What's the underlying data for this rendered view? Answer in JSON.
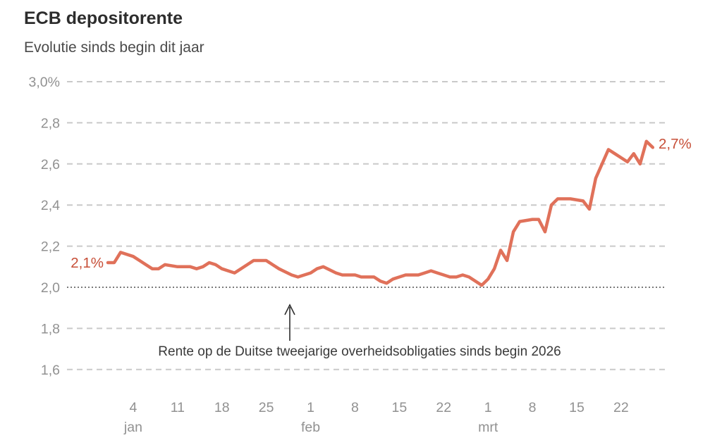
{
  "header": {
    "title": "ECB depositorente",
    "subtitle": "Evolutie sinds begin dit jaar"
  },
  "chart_data": {
    "type": "line",
    "title": "ECB depositorente",
    "subtitle": "Evolutie sinds begin dit jaar",
    "unit": "%",
    "grid": "horizontal-dashed",
    "legend": "none",
    "y_axis": {
      "range": [
        1.6,
        3.0
      ],
      "ticks": [
        {
          "label": "3,0%",
          "value": 3.0,
          "style": "dashed"
        },
        {
          "label": "2,8",
          "value": 2.8,
          "style": "dashed"
        },
        {
          "label": "2,6",
          "value": 2.6,
          "style": "dashed"
        },
        {
          "label": "2,4",
          "value": 2.4,
          "style": "dashed"
        },
        {
          "label": "2,2",
          "value": 2.2,
          "style": "dashed"
        },
        {
          "label": "2,0",
          "value": 2.0,
          "style": "dotted"
        },
        {
          "label": "1,8",
          "value": 1.8,
          "style": "dashed"
        },
        {
          "label": "1,6",
          "value": 1.6,
          "style": "dashed"
        }
      ]
    },
    "x_axis": {
      "ticks": [
        {
          "label": "4",
          "date": "4 jan",
          "month_label": "jan"
        },
        {
          "label": "11",
          "date": "11 jan"
        },
        {
          "label": "18",
          "date": "18 jan"
        },
        {
          "label": "25",
          "date": "25 jan"
        },
        {
          "label": "1",
          "date": "1 feb",
          "month_label": "feb"
        },
        {
          "label": "8",
          "date": "8 feb"
        },
        {
          "label": "15",
          "date": "15 feb"
        },
        {
          "label": "22",
          "date": "22 feb"
        },
        {
          "label": "1",
          "date": "1 mrt",
          "month_label": "mrt"
        },
        {
          "label": "8",
          "date": "8 mrt"
        },
        {
          "label": "15",
          "date": "15 mrt"
        },
        {
          "label": "22",
          "date": "22 mrt"
        }
      ]
    },
    "series": [
      {
        "name": "Rente op de Duitse tweejarige overheidsobligaties",
        "color": "#e0715a",
        "dates": [
          "31 dec",
          "1 jan",
          "2 jan",
          "4 jan",
          "5 jan",
          "6 jan",
          "7 jan",
          "8 jan",
          "9 jan",
          "11 jan",
          "12 jan",
          "13 jan",
          "14 jan",
          "15 jan",
          "16 jan",
          "17 jan",
          "18 jan",
          "20 jan",
          "21 jan",
          "22 jan",
          "23 jan",
          "25 jan",
          "26 jan",
          "27 jan",
          "29 jan",
          "30 jan",
          "1 feb",
          "2 feb",
          "3 feb",
          "5 feb",
          "6 feb",
          "8 feb",
          "9 feb",
          "10 feb",
          "11 feb",
          "12 feb",
          "13 feb",
          "14 feb",
          "15 feb",
          "16 feb",
          "18 feb",
          "19 feb",
          "20 feb",
          "21 feb",
          "22 feb",
          "23 feb",
          "24 feb",
          "25 feb",
          "26 feb",
          "28 feb",
          "1 mrt",
          "2 mrt",
          "3 mrt",
          "4 mrt",
          "5 mrt",
          "6 mrt",
          "8 mrt",
          "9 mrt",
          "10 mrt",
          "11 mrt",
          "12 mrt",
          "14 mrt",
          "16 mrt",
          "17 mrt",
          "18 mrt",
          "20 mrt",
          "21 mrt",
          "22 mrt",
          "23 mrt",
          "24 mrt",
          "25 mrt",
          "26 mrt",
          "27 mrt"
        ],
        "values": [
          2.12,
          2.12,
          2.17,
          2.15,
          2.13,
          2.11,
          2.09,
          2.09,
          2.11,
          2.1,
          2.1,
          2.1,
          2.09,
          2.1,
          2.12,
          2.11,
          2.09,
          2.07,
          2.09,
          2.11,
          2.13,
          2.13,
          2.11,
          2.09,
          2.06,
          2.05,
          2.07,
          2.09,
          2.1,
          2.07,
          2.06,
          2.06,
          2.05,
          2.05,
          2.05,
          2.03,
          2.02,
          2.04,
          2.05,
          2.06,
          2.06,
          2.07,
          2.08,
          2.07,
          2.06,
          2.05,
          2.05,
          2.06,
          2.05,
          2.01,
          2.04,
          2.09,
          2.18,
          2.13,
          2.27,
          2.32,
          2.33,
          2.33,
          2.27,
          2.4,
          2.43,
          2.43,
          2.42,
          2.38,
          2.53,
          2.67,
          2.65,
          2.63,
          2.61,
          2.65,
          2.6,
          2.71,
          2.68
        ]
      }
    ],
    "point_labels": {
      "start": "2,1%",
      "end": "2,7%"
    },
    "annotation": {
      "text": "Rente op de Duitse tweejarige overheidsobligaties sinds begin 2026"
    },
    "baseline_value": 2.0,
    "colors": {
      "line": "#e0715a",
      "value_labels": "#c74f38",
      "grid_dashed": "#c9c9c9",
      "grid_dotted": "#7a7a7a",
      "axis_text": "#919191",
      "annotation_text": "#3a3a3a",
      "title_text": "#2d2d2d"
    }
  }
}
